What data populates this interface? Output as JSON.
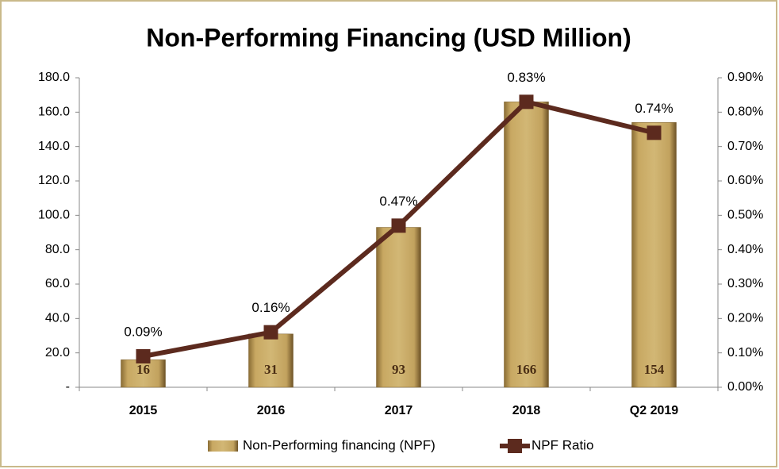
{
  "chart_data": {
    "type": "bar_line",
    "title": "Non-Performing Financing (USD Million)",
    "categories": [
      "2015",
      "2016",
      "2017",
      "2018",
      "Q2 2019"
    ],
    "series": [
      {
        "name": "Non-Performing financing (NPF)",
        "color": "#c4a462",
        "type": "bar",
        "values": [
          16,
          31,
          93,
          166,
          154
        ]
      },
      {
        "name": "NPF Ratio",
        "color": "#5c2a1e",
        "type": "line",
        "axis": "y2",
        "values": [
          0.09,
          0.16,
          0.47,
          0.83,
          0.74
        ],
        "value_labels": [
          "0.09%",
          "0.16%",
          "0.47%",
          "0.83%",
          "0.74%"
        ]
      }
    ],
    "ylim": [
      0,
      180
    ],
    "yticks": [
      {
        "value": 0,
        "label": "-"
      },
      {
        "value": 20,
        "label": "20.0"
      },
      {
        "value": 40,
        "label": "40.0"
      },
      {
        "value": 60,
        "label": "60.0"
      },
      {
        "value": 80,
        "label": "80.0"
      },
      {
        "value": 100,
        "label": "100.0"
      },
      {
        "value": 120,
        "label": "120.0"
      },
      {
        "value": 140,
        "label": "140.0"
      },
      {
        "value": 160,
        "label": "160.0"
      },
      {
        "value": 180,
        "label": "180.0"
      }
    ],
    "y2lim": [
      0,
      0.9
    ],
    "y2ticks": [
      {
        "value": 0,
        "label": "0.00%"
      },
      {
        "value": 0.1,
        "label": "0.10%"
      },
      {
        "value": 0.2,
        "label": "0.20%"
      },
      {
        "value": 0.3,
        "label": "0.30%"
      },
      {
        "value": 0.4,
        "label": "0.40%"
      },
      {
        "value": 0.5,
        "label": "0.50%"
      },
      {
        "value": 0.6,
        "label": "0.60%"
      },
      {
        "value": 0.7,
        "label": "0.70%"
      },
      {
        "value": 0.8,
        "label": "0.80%"
      },
      {
        "value": 0.9,
        "label": "0.90%"
      }
    ],
    "legend": "bottom",
    "grid": false
  }
}
